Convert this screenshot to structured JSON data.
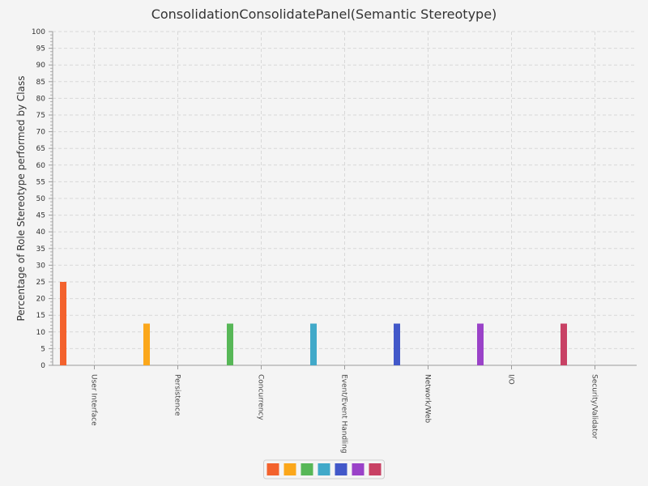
{
  "chart_data": {
    "type": "bar",
    "title": "ConsolidationConsolidatePanel(Semantic Stereotype)",
    "xlabel": "",
    "ylabel": "Percentage of Role Stereotype performed by Class",
    "ylim": [
      0,
      100
    ],
    "ytick_step": 5,
    "grid": true,
    "legend": "bottom-center",
    "categories": [
      "User Interface",
      "Persistence",
      "Concurrency",
      "Event/Event Handling",
      "Network/Web",
      "I/O",
      "Security/Validator"
    ],
    "values": [
      25,
      12.5,
      12.5,
      12.5,
      12.5,
      12.5,
      12.5
    ],
    "colors": [
      "#f3622d",
      "#fba71b",
      "#57b757",
      "#41a9c9",
      "#4258c9",
      "#9a42c8",
      "#c84164"
    ]
  }
}
